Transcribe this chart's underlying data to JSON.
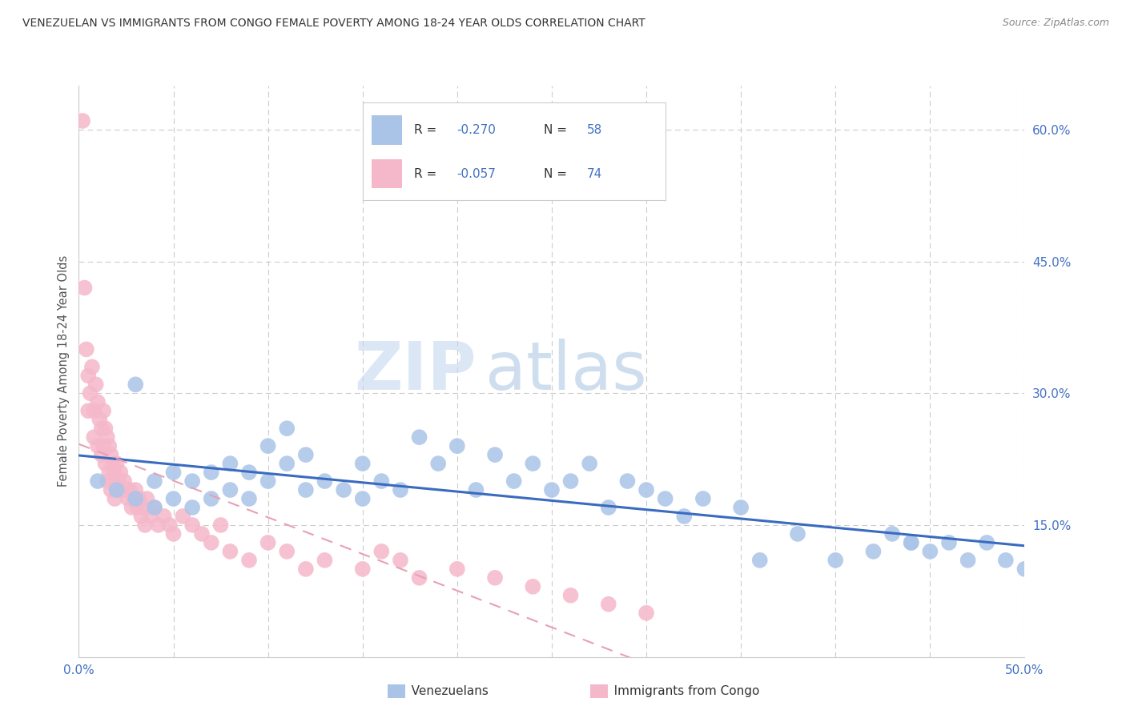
{
  "title": "VENEZUELAN VS IMMIGRANTS FROM CONGO FEMALE POVERTY AMONG 18-24 YEAR OLDS CORRELATION CHART",
  "source": "Source: ZipAtlas.com",
  "ylabel": "Female Poverty Among 18-24 Year Olds",
  "xlim": [
    0.0,
    0.5
  ],
  "ylim": [
    0.0,
    0.65
  ],
  "grid_color": "#cccccc",
  "background_color": "#ffffff",
  "venezuelan_color": "#aac4e8",
  "congo_color": "#f5b8cb",
  "venezuelan_line_color": "#3a6bbf",
  "congo_line_color": "#e8a0b4",
  "R_venezuelan": -0.27,
  "N_venezuelan": 58,
  "R_congo": -0.057,
  "N_congo": 74,
  "watermark_zip": "ZIP",
  "watermark_atlas": "atlas",
  "venezuelan_x": [
    0.01,
    0.02,
    0.03,
    0.03,
    0.04,
    0.04,
    0.05,
    0.05,
    0.06,
    0.06,
    0.07,
    0.07,
    0.08,
    0.08,
    0.09,
    0.09,
    0.1,
    0.1,
    0.11,
    0.11,
    0.12,
    0.12,
    0.13,
    0.14,
    0.15,
    0.15,
    0.16,
    0.17,
    0.18,
    0.19,
    0.2,
    0.21,
    0.22,
    0.23,
    0.24,
    0.25,
    0.26,
    0.27,
    0.28,
    0.29,
    0.3,
    0.31,
    0.32,
    0.33,
    0.35,
    0.36,
    0.38,
    0.4,
    0.42,
    0.44,
    0.45,
    0.46,
    0.47,
    0.48,
    0.49,
    0.5,
    0.43,
    0.44
  ],
  "venezuelan_y": [
    0.2,
    0.19,
    0.31,
    0.18,
    0.2,
    0.17,
    0.21,
    0.18,
    0.2,
    0.17,
    0.21,
    0.18,
    0.22,
    0.19,
    0.21,
    0.18,
    0.24,
    0.2,
    0.26,
    0.22,
    0.23,
    0.19,
    0.2,
    0.19,
    0.22,
    0.18,
    0.2,
    0.19,
    0.25,
    0.22,
    0.24,
    0.19,
    0.23,
    0.2,
    0.22,
    0.19,
    0.2,
    0.22,
    0.17,
    0.2,
    0.19,
    0.18,
    0.16,
    0.18,
    0.17,
    0.11,
    0.14,
    0.11,
    0.12,
    0.13,
    0.12,
    0.13,
    0.11,
    0.13,
    0.11,
    0.1,
    0.14,
    0.13
  ],
  "congo_x": [
    0.002,
    0.003,
    0.004,
    0.005,
    0.005,
    0.006,
    0.007,
    0.008,
    0.008,
    0.009,
    0.01,
    0.01,
    0.011,
    0.012,
    0.012,
    0.013,
    0.013,
    0.014,
    0.014,
    0.015,
    0.015,
    0.016,
    0.016,
    0.017,
    0.017,
    0.018,
    0.018,
    0.019,
    0.019,
    0.02,
    0.02,
    0.021,
    0.022,
    0.023,
    0.024,
    0.025,
    0.026,
    0.027,
    0.028,
    0.029,
    0.03,
    0.031,
    0.032,
    0.033,
    0.034,
    0.035,
    0.036,
    0.038,
    0.04,
    0.042,
    0.045,
    0.048,
    0.05,
    0.055,
    0.06,
    0.065,
    0.07,
    0.075,
    0.08,
    0.09,
    0.1,
    0.11,
    0.12,
    0.13,
    0.15,
    0.16,
    0.17,
    0.18,
    0.2,
    0.22,
    0.24,
    0.26,
    0.28,
    0.3
  ],
  "congo_y": [
    0.61,
    0.42,
    0.35,
    0.32,
    0.28,
    0.3,
    0.33,
    0.28,
    0.25,
    0.31,
    0.29,
    0.24,
    0.27,
    0.26,
    0.23,
    0.28,
    0.24,
    0.26,
    0.22,
    0.25,
    0.2,
    0.24,
    0.21,
    0.23,
    0.19,
    0.22,
    0.2,
    0.21,
    0.18,
    0.22,
    0.19,
    0.2,
    0.21,
    0.19,
    0.2,
    0.19,
    0.18,
    0.19,
    0.17,
    0.18,
    0.19,
    0.17,
    0.18,
    0.16,
    0.17,
    0.15,
    0.18,
    0.16,
    0.17,
    0.15,
    0.16,
    0.15,
    0.14,
    0.16,
    0.15,
    0.14,
    0.13,
    0.15,
    0.12,
    0.11,
    0.13,
    0.12,
    0.1,
    0.11,
    0.1,
    0.12,
    0.11,
    0.09,
    0.1,
    0.09,
    0.08,
    0.07,
    0.06,
    0.05
  ]
}
